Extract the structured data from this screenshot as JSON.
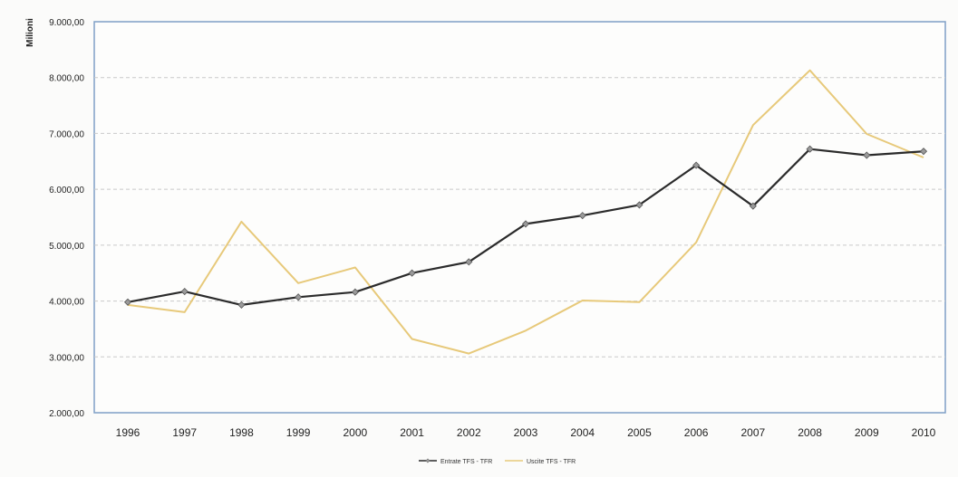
{
  "chart_data": {
    "type": "line",
    "ylabel": "Milioni",
    "xlabel": "",
    "title": "",
    "categories": [
      "1996",
      "1997",
      "1998",
      "1999",
      "2000",
      "2001",
      "2002",
      "2003",
      "2004",
      "2005",
      "2006",
      "2007",
      "2008",
      "2009",
      "2010"
    ],
    "ylim": [
      2000,
      9000
    ],
    "ytick_values": [
      2000,
      3000,
      4000,
      5000,
      6000,
      7000,
      8000,
      9000
    ],
    "ytick_labels": [
      "2.000,00",
      "3.000,00",
      "4.000,00",
      "5.000,00",
      "6.000,00",
      "7.000,00",
      "8.000,00",
      "9.000,00"
    ],
    "grid": "horizontal dashed",
    "legend_position": "bottom",
    "series": [
      {
        "name": "Entrate TFS - TFR",
        "color": "#2b2b2b",
        "marker": "diamond",
        "values": [
          3980,
          4170,
          3930,
          4070,
          4160,
          4500,
          4700,
          5380,
          5530,
          5720,
          6430,
          5700,
          6720,
          6610,
          6680
        ]
      },
      {
        "name": "Uscite TFS - TFR",
        "color": "#e7c97a",
        "marker": "none",
        "values": [
          3930,
          3800,
          5420,
          4320,
          4600,
          3320,
          3060,
          3470,
          4010,
          3980,
          5050,
          7150,
          8130,
          6990,
          6570
        ]
      }
    ]
  }
}
